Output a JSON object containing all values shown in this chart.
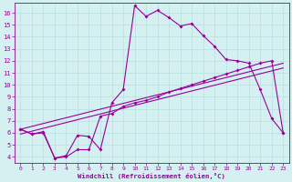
{
  "xlabel": "Windchill (Refroidissement éolien,°C)",
  "bg_color": "#d4f0f0",
  "line_color": "#990099",
  "grid_color": "#b8e0e0",
  "xlim": [
    -0.5,
    23.5
  ],
  "ylim": [
    3.5,
    16.8
  ],
  "xticks": [
    0,
    1,
    2,
    3,
    4,
    5,
    6,
    7,
    8,
    9,
    10,
    11,
    12,
    13,
    14,
    15,
    16,
    17,
    18,
    19,
    20,
    21,
    22,
    23
  ],
  "yticks": [
    4,
    5,
    6,
    7,
    8,
    9,
    10,
    11,
    12,
    13,
    14,
    15,
    16
  ],
  "series1_x": [
    0,
    1,
    2,
    3,
    4,
    5,
    6,
    7,
    8,
    9,
    10,
    11,
    12,
    13,
    14,
    15,
    16,
    17,
    18,
    19,
    20,
    21,
    22,
    23
  ],
  "series1_y": [
    6.3,
    5.9,
    6.1,
    3.9,
    4.1,
    5.8,
    5.7,
    4.6,
    8.5,
    9.6,
    16.6,
    15.7,
    16.2,
    15.6,
    14.9,
    15.1,
    14.1,
    13.2,
    12.1,
    12.0,
    11.8,
    9.6,
    7.2,
    6.0
  ],
  "series2_x": [
    0,
    1,
    2,
    3,
    4,
    5,
    6,
    7,
    8,
    9,
    10,
    11,
    12,
    13,
    14,
    15,
    16,
    17,
    18,
    19,
    20,
    21,
    22,
    23
  ],
  "series2_y": [
    6.3,
    5.9,
    6.0,
    3.9,
    4.0,
    4.6,
    4.6,
    7.4,
    7.6,
    8.2,
    8.5,
    8.7,
    9.0,
    9.4,
    9.7,
    10.0,
    10.3,
    10.6,
    10.9,
    11.2,
    11.5,
    11.8,
    12.0,
    6.0
  ],
  "series3_x": [
    0,
    23
  ],
  "series3_y": [
    6.3,
    11.8
  ],
  "series4_x": [
    0,
    23
  ],
  "series4_y": [
    5.9,
    11.4
  ]
}
